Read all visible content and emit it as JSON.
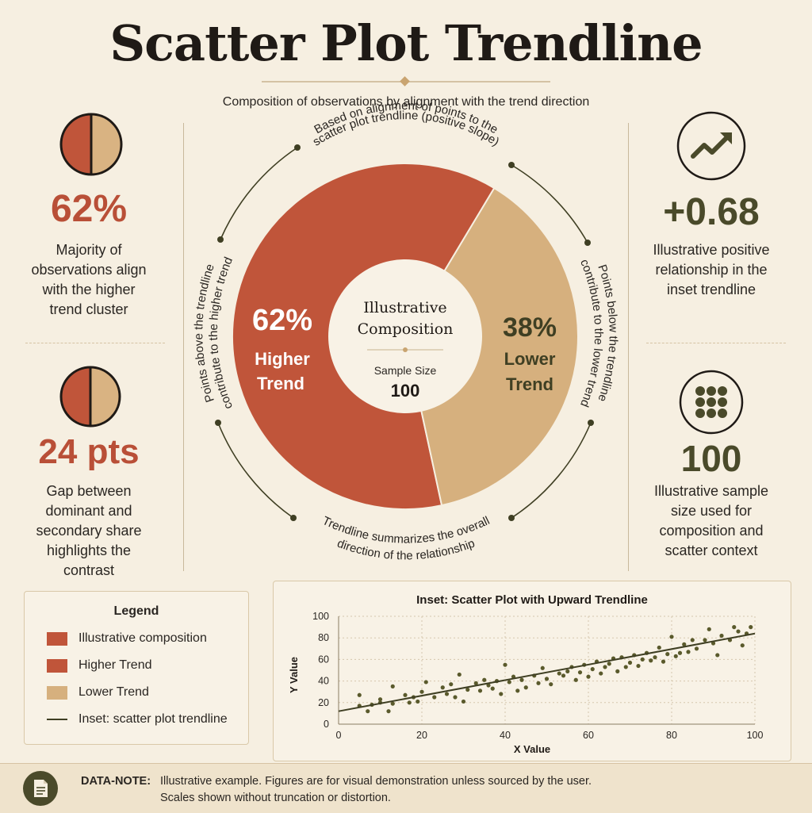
{
  "title": "Scatter Plot Trendline",
  "subtitle": "Composition of observations by alignment with the trend direction",
  "left_stats": [
    {
      "value": "62%",
      "desc": [
        "Majority of",
        "observations align",
        "with the higher",
        "trend cluster"
      ]
    },
    {
      "value": "24 pts",
      "desc": [
        "Gap between",
        "dominant and",
        "secondary share",
        "highlights the",
        "contrast"
      ]
    }
  ],
  "right_stats": [
    {
      "value": "+0.68",
      "desc": [
        "Illustrative positive",
        "relationship in the",
        "inset trendline"
      ]
    },
    {
      "value": "100",
      "desc": [
        "Illustrative sample",
        "size used for",
        "composition and",
        "scatter context"
      ]
    }
  ],
  "donut": {
    "center_title": [
      "Illustrative",
      "Composition"
    ],
    "sample_label": "Sample Size",
    "sample_value": "100",
    "slices": [
      {
        "pct": "62%",
        "label": [
          "Higher",
          "Trend"
        ]
      },
      {
        "pct": "38%",
        "label": [
          "Lower",
          "Trend"
        ]
      }
    ],
    "arc_texts": {
      "top": [
        "Based on alignment of points to the",
        "scatter plot trendline (positive slope)"
      ],
      "left": [
        "Points above the trendline",
        "contribute to the higher trend"
      ],
      "right": [
        "Points below the trendline",
        "contribute to the lower trend"
      ],
      "bottom": [
        "Trendline summarizes the overall",
        "direction of the relationship"
      ]
    }
  },
  "legend": {
    "title": "Legend",
    "items": [
      {
        "label": "Illustrative composition"
      },
      {
        "label": "Higher Trend"
      },
      {
        "label": "Lower Trend"
      },
      {
        "label": "Inset: scatter plot trendline"
      }
    ]
  },
  "footer": {
    "label": "DATA-NOTE:",
    "lines": [
      "Illustrative example. Figures are for visual demonstration unless sourced by the user.",
      "Scales shown without truncation or distortion."
    ]
  },
  "colors": {
    "higher": "#c0553a",
    "lower": "#d6b07e",
    "trend": "#3f3f23",
    "point": "#5a5a2c",
    "bg": "#f6efe1"
  },
  "icons": {
    "left_top": "pie-half-icon",
    "left_bottom": "pie-half-icon",
    "right_top": "trend-up-arrow-icon",
    "right_bottom": "dot-grid-icon",
    "footer": "document-icon"
  },
  "chart_data": [
    {
      "type": "pie",
      "variant": "donut",
      "title": "Illustrative Composition",
      "categories": [
        "Higher Trend",
        "Lower Trend"
      ],
      "values": [
        62,
        38
      ],
      "unit": "%"
    },
    {
      "type": "scatter",
      "title": "Inset: Scatter Plot with Upward Trendline",
      "xlabel": "X Value",
      "ylabel": "Y Value",
      "xlim": [
        0,
        100
      ],
      "ylim": [
        0,
        100
      ],
      "xticks": [
        0,
        20,
        40,
        60,
        80,
        100
      ],
      "yticks": [
        0,
        20,
        40,
        60,
        80,
        100
      ],
      "grid": true,
      "trendline": {
        "x": [
          0,
          100
        ],
        "y": [
          12,
          84
        ]
      },
      "points": [
        [
          5,
          27
        ],
        [
          5,
          17
        ],
        [
          7,
          12
        ],
        [
          8,
          18
        ],
        [
          10,
          20
        ],
        [
          10,
          23
        ],
        [
          12,
          12
        ],
        [
          13,
          35
        ],
        [
          13,
          19
        ],
        [
          16,
          27
        ],
        [
          17,
          20
        ],
        [
          18,
          25
        ],
        [
          19,
          21
        ],
        [
          20,
          30
        ],
        [
          21,
          39
        ],
        [
          23,
          25
        ],
        [
          25,
          34
        ],
        [
          26,
          28
        ],
        [
          27,
          37
        ],
        [
          28,
          25
        ],
        [
          29,
          46
        ],
        [
          30,
          21
        ],
        [
          31,
          32
        ],
        [
          33,
          38
        ],
        [
          34,
          31
        ],
        [
          35,
          41
        ],
        [
          36,
          36
        ],
        [
          37,
          33
        ],
        [
          38,
          40
        ],
        [
          39,
          28
        ],
        [
          40,
          55
        ],
        [
          41,
          39
        ],
        [
          42,
          44
        ],
        [
          43,
          31
        ],
        [
          44,
          41
        ],
        [
          45,
          34
        ],
        [
          47,
          45
        ],
        [
          48,
          38
        ],
        [
          49,
          52
        ],
        [
          50,
          42
        ],
        [
          51,
          37
        ],
        [
          53,
          47
        ],
        [
          54,
          45
        ],
        [
          55,
          49
        ],
        [
          56,
          53
        ],
        [
          57,
          41
        ],
        [
          58,
          48
        ],
        [
          59,
          55
        ],
        [
          60,
          44
        ],
        [
          61,
          51
        ],
        [
          62,
          58
        ],
        [
          63,
          47
        ],
        [
          64,
          53
        ],
        [
          65,
          56
        ],
        [
          66,
          61
        ],
        [
          67,
          49
        ],
        [
          68,
          62
        ],
        [
          69,
          53
        ],
        [
          70,
          57
        ],
        [
          71,
          64
        ],
        [
          72,
          54
        ],
        [
          73,
          60
        ],
        [
          74,
          66
        ],
        [
          75,
          59
        ],
        [
          76,
          62
        ],
        [
          77,
          71
        ],
        [
          78,
          58
        ],
        [
          79,
          65
        ],
        [
          80,
          81
        ],
        [
          81,
          63
        ],
        [
          82,
          66
        ],
        [
          83,
          74
        ],
        [
          84,
          67
        ],
        [
          85,
          78
        ],
        [
          86,
          70
        ],
        [
          88,
          78
        ],
        [
          89,
          88
        ],
        [
          90,
          75
        ],
        [
          91,
          64
        ],
        [
          92,
          82
        ],
        [
          94,
          78
        ],
        [
          95,
          90
        ],
        [
          96,
          86
        ],
        [
          97,
          73
        ],
        [
          98,
          84
        ],
        [
          99,
          90
        ]
      ]
    }
  ]
}
